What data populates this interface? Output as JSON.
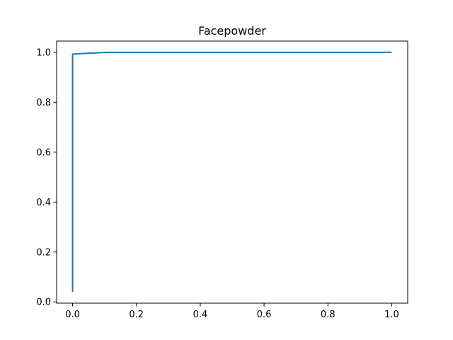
{
  "chart_data": {
    "type": "line",
    "title": "Facepowder",
    "xlabel": "",
    "ylabel": "",
    "xlim": [
      -0.05,
      1.05
    ],
    "ylim": [
      -0.005,
      1.045
    ],
    "xticks": [
      0.0,
      0.2,
      0.4,
      0.6,
      0.8,
      1.0
    ],
    "xtick_labels": [
      "0.0",
      "0.2",
      "0.4",
      "0.6",
      "0.8",
      "1.0"
    ],
    "yticks": [
      0.0,
      0.2,
      0.4,
      0.6,
      0.8,
      1.0
    ],
    "ytick_labels": [
      "0.0",
      "0.2",
      "0.4",
      "0.6",
      "0.8",
      "1.0"
    ],
    "grid": false,
    "series": [
      {
        "color": "#1f77b4",
        "x": [
          0.0,
          0.0,
          0.0,
          0.11,
          1.0
        ],
        "y": [
          0.04,
          0.285,
          0.993,
          1.0,
          1.0
        ]
      }
    ],
    "band": {
      "color": "#aec7e8",
      "x": 0.0,
      "y": [
        0.04,
        0.285
      ]
    }
  }
}
